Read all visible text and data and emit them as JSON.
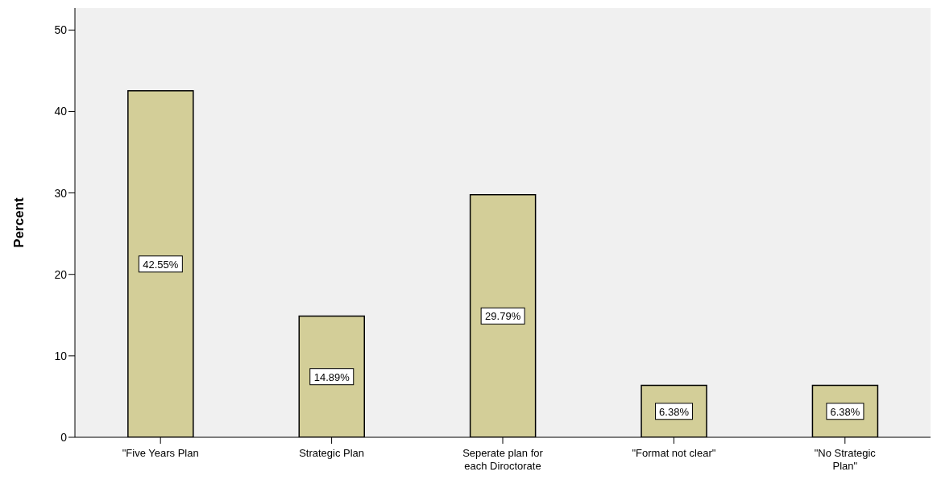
{
  "chart_data": {
    "type": "bar",
    "categories": [
      "\"Five Years Plan",
      "Strategic Plan",
      "Seperate plan for each Diroctorate",
      "\"Format not clear\"",
      "\"No Strategic Plan\""
    ],
    "values": [
      42.55,
      14.89,
      29.79,
      6.38,
      6.38
    ],
    "value_labels": [
      "42.55%",
      "14.89%",
      "29.79%",
      "6.38%",
      "6.38%"
    ],
    "color": "#d3ce98",
    "ylabel": "Percent",
    "ylim": [
      0,
      52.7
    ],
    "yticks": [
      0,
      10,
      20,
      30,
      40,
      50
    ],
    "grid": false,
    "legend": false
  }
}
